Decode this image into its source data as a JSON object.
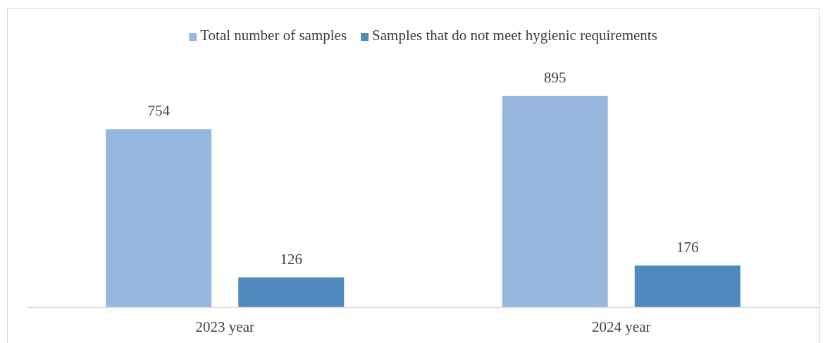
{
  "chart_data": {
    "type": "bar",
    "categories": [
      "2023 year",
      "2024 year"
    ],
    "series": [
      {
        "name": "Total number of samples",
        "color": "#97b8de",
        "values": [
          754,
          895
        ]
      },
      {
        "name": "Samples that do not meet hygienic requirements",
        "color": "#4f89bd",
        "values": [
          126,
          176
        ]
      }
    ],
    "data_labels": true,
    "legend": "top",
    "tick_labels": "x"
  }
}
